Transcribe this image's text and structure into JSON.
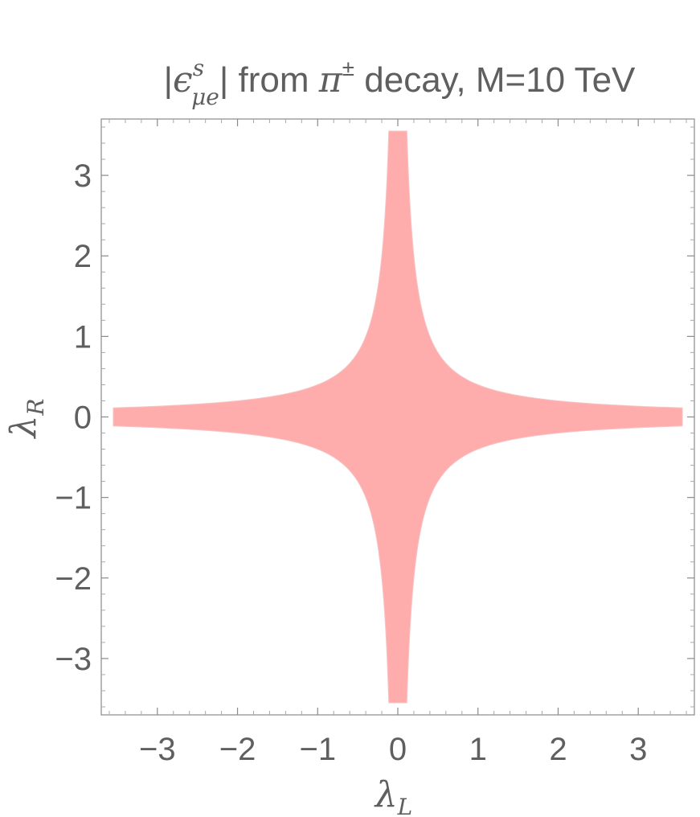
{
  "chart_data": {
    "type": "area",
    "title": {
      "prefix": "|",
      "symbol": "ϵ",
      "superscript": "s",
      "subscript": "μe",
      "after_symbol": "| from ",
      "particle": "π",
      "particle_sup": "±",
      "suffix": " decay, M=10 TeV"
    },
    "xlabel": {
      "symbol": "λ",
      "sub": "L"
    },
    "ylabel": {
      "symbol": "λ",
      "sub": "R"
    },
    "xlim": [
      -3.7,
      3.7
    ],
    "ylim": [
      -3.7,
      3.7
    ],
    "xticks": [
      -3,
      -2,
      -1,
      0,
      1,
      2,
      3
    ],
    "yticks": [
      -3,
      -2,
      -1,
      0,
      1,
      2,
      3
    ],
    "xtick_labels": [
      "−3",
      "−2",
      "−1",
      "0",
      "1",
      "2",
      "3"
    ],
    "ytick_labels": [
      "−3",
      "−2",
      "−1",
      "0",
      "1",
      "2",
      "3"
    ],
    "region": {
      "description": "allowed region bounded by |λL·λR| ≤ c",
      "c": 0.4,
      "extent": 3.55,
      "color": "#ffacac"
    },
    "grid": false,
    "legend": "none"
  }
}
